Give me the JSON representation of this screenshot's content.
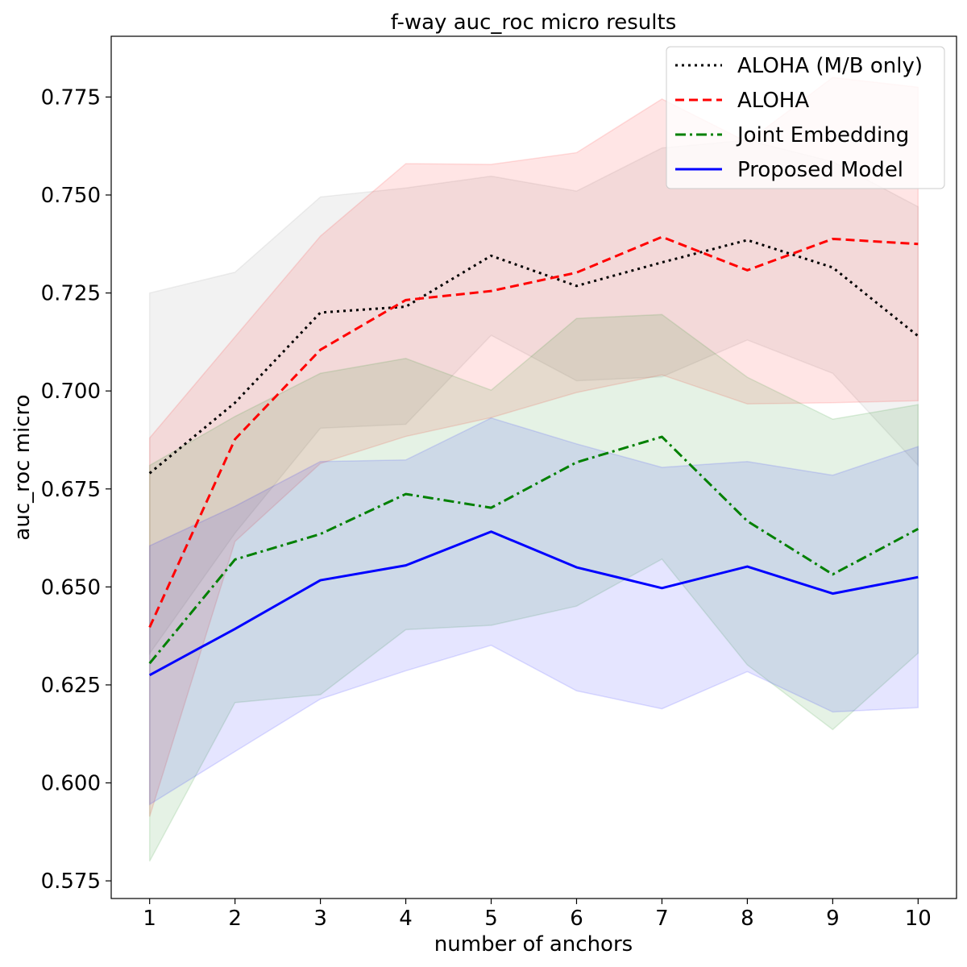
{
  "chart_data": {
    "type": "line",
    "title": "f-way auc_roc micro results",
    "xlabel": "number of anchors",
    "ylabel": "auc_roc micro",
    "x": [
      1,
      2,
      3,
      4,
      5,
      6,
      7,
      8,
      9,
      10
    ],
    "xticks": [
      "1",
      "2",
      "3",
      "4",
      "5",
      "6",
      "7",
      "8",
      "9",
      "10"
    ],
    "yticks": [
      "0.575",
      "0.600",
      "0.625",
      "0.650",
      "0.675",
      "0.700",
      "0.725",
      "0.750",
      "0.775"
    ],
    "ylim": [
      0.5705,
      0.7905
    ],
    "xlim": [
      0.55,
      10.45
    ],
    "legend_position": "top-right",
    "grid": false,
    "series": [
      {
        "name": "ALOHA (M/B only)",
        "color": "#000000",
        "band_color": "#808080",
        "linestyle": "dotted",
        "values": [
          0.679,
          0.697,
          0.72,
          0.7215,
          0.7345,
          0.7268,
          0.7328,
          0.7385,
          0.7315,
          0.714
        ],
        "upper": [
          0.725,
          0.7303,
          0.7495,
          0.7518,
          0.7548,
          0.751,
          0.762,
          0.764,
          0.7585,
          0.747
        ],
        "lower": [
          0.633,
          0.6637,
          0.6905,
          0.6915,
          0.7142,
          0.7026,
          0.7036,
          0.713,
          0.7045,
          0.681
        ]
      },
      {
        "name": "ALOHA",
        "color": "#ff0000",
        "band_color": "#ff0000",
        "linestyle": "dashed",
        "values": [
          0.6397,
          0.6877,
          0.7105,
          0.7232,
          0.7255,
          0.7302,
          0.7393,
          0.7308,
          0.7388,
          0.7375
        ],
        "upper": [
          0.688,
          0.7138,
          0.7395,
          0.758,
          0.7578,
          0.7608,
          0.7745,
          0.7635,
          0.78,
          0.7775
        ],
        "lower": [
          0.5914,
          0.6616,
          0.6815,
          0.6884,
          0.6932,
          0.6996,
          0.7041,
          0.6967,
          0.697,
          0.6975
        ]
      },
      {
        "name": "Joint Embedding",
        "color": "#008000",
        "band_color": "#008000",
        "linestyle": "dashdot",
        "values": [
          0.6305,
          0.657,
          0.6635,
          0.6737,
          0.6702,
          0.6818,
          0.6883,
          0.6668,
          0.6532,
          0.6648
        ],
        "upper": [
          0.681,
          0.6935,
          0.7045,
          0.7083,
          0.7002,
          0.7185,
          0.7195,
          0.7035,
          0.6928,
          0.6965
        ],
        "lower": [
          0.58,
          0.6205,
          0.6225,
          0.6391,
          0.6402,
          0.6451,
          0.6571,
          0.6301,
          0.6136,
          0.6331
        ]
      },
      {
        "name": "Proposed Model",
        "color": "#0000ff",
        "band_color": "#0000ff",
        "linestyle": "solid",
        "values": [
          0.6275,
          0.6393,
          0.6517,
          0.6555,
          0.6641,
          0.655,
          0.6497,
          0.6552,
          0.6483,
          0.6525
        ],
        "upper": [
          0.6605,
          0.6706,
          0.682,
          0.6824,
          0.6931,
          0.6865,
          0.6805,
          0.682,
          0.6785,
          0.6858
        ],
        "lower": [
          0.5945,
          0.608,
          0.6214,
          0.6286,
          0.6351,
          0.6235,
          0.6189,
          0.6284,
          0.6181,
          0.6192
        ]
      }
    ]
  }
}
